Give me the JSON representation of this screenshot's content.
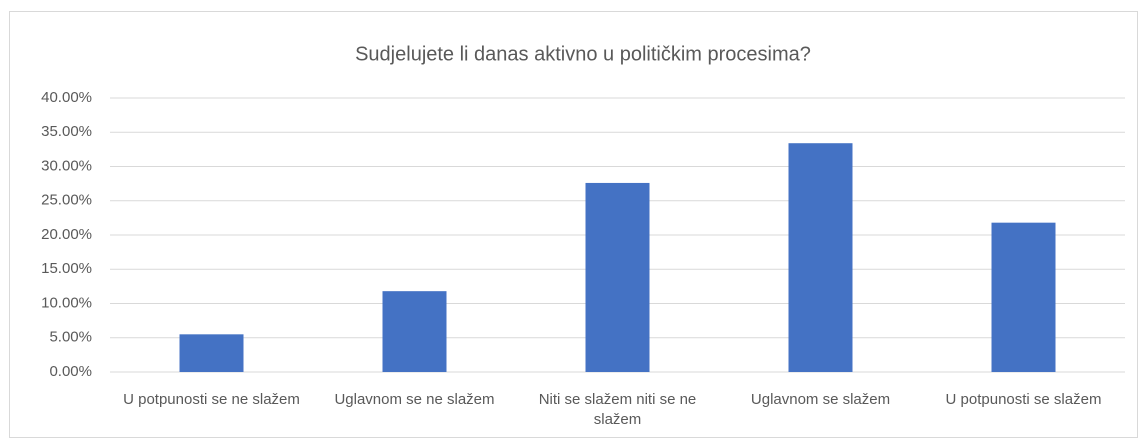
{
  "chart_data": {
    "type": "bar",
    "title": "Sudjelujete li danas aktivno u političkim procesima?",
    "categories": [
      "U potpunosti se ne slažem",
      "Uglavnom se ne slažem",
      "Niti se slažem niti se ne slažem",
      "Uglavnom se slažem",
      "U potpunosti se slažem"
    ],
    "values": [
      5.5,
      11.8,
      27.6,
      33.4,
      21.8
    ],
    "color": "#4472c4",
    "ylim": [
      0,
      40
    ],
    "yticks": [
      {
        "value": 0,
        "label": "0.00%"
      },
      {
        "value": 5,
        "label": "5.00%"
      },
      {
        "value": 10,
        "label": "10.00%"
      },
      {
        "value": 15,
        "label": "15.00%"
      },
      {
        "value": 20,
        "label": "20.00%"
      },
      {
        "value": 25,
        "label": "25.00%"
      },
      {
        "value": 30,
        "label": "30.00%"
      },
      {
        "value": 35,
        "label": "35.00%"
      },
      {
        "value": 40,
        "label": "40.00%"
      }
    ],
    "grid": true
  }
}
